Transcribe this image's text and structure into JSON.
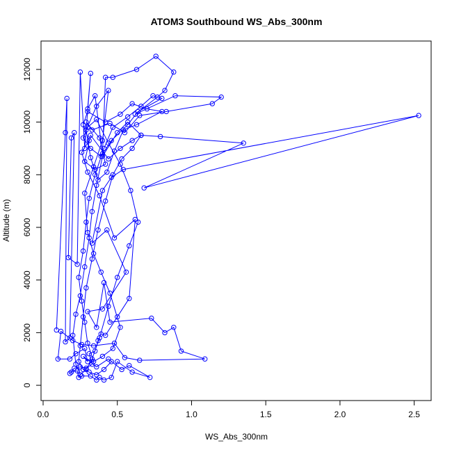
{
  "chart_data": {
    "type": "line",
    "title": "ATOM3 Southbound WS_Abs_300nm",
    "xlabel": "WS_Abs_300nm",
    "ylabel": "Altitude (m)",
    "xlim": [
      0,
      2.6
    ],
    "ylim": [
      -500,
      13000
    ],
    "x_ticks": [
      "0.0",
      "0.5",
      "1.0",
      "1.5",
      "2.0",
      "2.5"
    ],
    "y_ticks": [
      "0",
      "2000",
      "4000",
      "6000",
      "8000",
      "10000",
      "12000"
    ],
    "grid": false,
    "legend": "none",
    "marker": "open-circle",
    "series": [
      {
        "color": "#0000ff",
        "points": [
          [
            0.09,
            2100
          ],
          [
            0.15,
            9600
          ],
          [
            0.16,
            10900
          ],
          [
            0.15,
            1650
          ],
          [
            0.18,
            1800
          ],
          [
            0.21,
            9600
          ],
          [
            0.19,
            9400
          ],
          [
            0.17,
            4850
          ],
          [
            0.23,
            4600
          ],
          [
            0.25,
            11900
          ],
          [
            0.28,
            9000
          ],
          [
            0.32,
            11850
          ],
          [
            0.3,
            10500
          ],
          [
            0.35,
            11000
          ],
          [
            0.4,
            8800
          ],
          [
            0.42,
            11700
          ],
          [
            0.47,
            11700
          ],
          [
            0.63,
            12000
          ],
          [
            0.76,
            12500
          ],
          [
            0.88,
            11900
          ],
          [
            0.82,
            11200
          ],
          [
            0.77,
            10950
          ],
          [
            0.62,
            10300
          ],
          [
            0.89,
            11000
          ],
          [
            1.2,
            10950
          ],
          [
            1.14,
            10700
          ],
          [
            0.83,
            10400
          ],
          [
            0.65,
            10250
          ],
          [
            0.55,
            9600
          ],
          [
            0.45,
            9950
          ],
          [
            0.33,
            9700
          ],
          [
            0.29,
            10000
          ],
          [
            0.38,
            9400
          ],
          [
            0.42,
            8400
          ],
          [
            0.35,
            8200
          ],
          [
            0.28,
            8500
          ],
          [
            0.32,
            9500
          ],
          [
            0.44,
            8600
          ],
          [
            0.52,
            9000
          ],
          [
            0.6,
            9300
          ],
          [
            0.66,
            9500
          ],
          [
            0.79,
            9450
          ],
          [
            1.35,
            9200
          ],
          [
            0.68,
            7500
          ],
          [
            2.53,
            10250
          ],
          [
            0.54,
            8200
          ],
          [
            0.46,
            7900
          ],
          [
            0.4,
            7400
          ],
          [
            0.33,
            5400
          ],
          [
            0.43,
            5900
          ],
          [
            0.56,
            4300
          ],
          [
            0.4,
            2900
          ],
          [
            0.3,
            2800
          ],
          [
            0.36,
            2200
          ],
          [
            0.41,
            3900
          ],
          [
            0.45,
            2400
          ],
          [
            0.73,
            2550
          ],
          [
            0.82,
            2000
          ],
          [
            0.88,
            2200
          ],
          [
            0.93,
            1300
          ],
          [
            1.09,
            1000
          ],
          [
            0.65,
            950
          ],
          [
            0.55,
            1050
          ],
          [
            0.48,
            1600
          ],
          [
            0.34,
            1500
          ],
          [
            0.26,
            1550
          ],
          [
            0.2,
            1700
          ],
          [
            0.12,
            2050
          ],
          [
            0.1,
            1000
          ],
          [
            0.18,
            1000
          ],
          [
            0.22,
            1200
          ],
          [
            0.28,
            1400
          ],
          [
            0.3,
            900
          ],
          [
            0.27,
            1100
          ],
          [
            0.36,
            700
          ],
          [
            0.44,
            1000
          ],
          [
            0.53,
            600
          ],
          [
            0.58,
            750
          ],
          [
            0.72,
            300
          ],
          [
            0.6,
            500
          ],
          [
            0.5,
            900
          ],
          [
            0.46,
            300
          ],
          [
            0.41,
            200
          ],
          [
            0.38,
            300
          ],
          [
            0.36,
            200
          ],
          [
            0.32,
            350
          ],
          [
            0.26,
            350
          ],
          [
            0.24,
            300
          ],
          [
            0.23,
            550
          ],
          [
            0.19,
            500
          ],
          [
            0.18,
            450
          ],
          [
            0.21,
            650
          ],
          [
            0.25,
            700
          ],
          [
            0.29,
            650
          ],
          [
            0.33,
            800
          ],
          [
            0.31,
            1200
          ],
          [
            0.35,
            1300
          ],
          [
            0.37,
            1700
          ],
          [
            0.39,
            1950
          ],
          [
            0.42,
            1900
          ],
          [
            0.5,
            2600
          ],
          [
            0.58,
            3300
          ],
          [
            0.62,
            6300
          ],
          [
            0.48,
            5600
          ],
          [
            0.38,
            7200
          ],
          [
            0.3,
            8100
          ],
          [
            0.26,
            8850
          ],
          [
            0.31,
            9300
          ],
          [
            0.27,
            9900
          ],
          [
            0.3,
            10400
          ],
          [
            0.42,
            10000
          ],
          [
            0.52,
            10300
          ],
          [
            0.6,
            10700
          ],
          [
            0.7,
            10500
          ],
          [
            0.8,
            10400
          ],
          [
            0.63,
            9900
          ],
          [
            0.54,
            9700
          ],
          [
            0.48,
            8900
          ],
          [
            0.43,
            8100
          ],
          [
            0.37,
            7800
          ],
          [
            0.32,
            8650
          ],
          [
            0.29,
            9700
          ],
          [
            0.36,
            10600
          ],
          [
            0.44,
            11200
          ],
          [
            0.4,
            9300
          ],
          [
            0.34,
            8300
          ],
          [
            0.28,
            7300
          ],
          [
            0.3,
            5800
          ],
          [
            0.34,
            5000
          ],
          [
            0.39,
            4300
          ],
          [
            0.45,
            3500
          ],
          [
            0.52,
            2200
          ],
          [
            0.47,
            1400
          ],
          [
            0.4,
            1100
          ],
          [
            0.34,
            900
          ],
          [
            0.3,
            1600
          ],
          [
            0.28,
            2400
          ],
          [
            0.26,
            3200
          ],
          [
            0.24,
            4100
          ],
          [
            0.27,
            5100
          ],
          [
            0.29,
            6200
          ],
          [
            0.31,
            7100
          ],
          [
            0.35,
            8000
          ],
          [
            0.41,
            9000
          ],
          [
            0.47,
            9800
          ],
          [
            0.57,
            10200
          ],
          [
            0.66,
            10600
          ],
          [
            0.74,
            11000
          ],
          [
            0.8,
            10900
          ],
          [
            0.64,
            10400
          ],
          [
            0.57,
            9900
          ],
          [
            0.46,
            9300
          ],
          [
            0.39,
            8700
          ],
          [
            0.32,
            9000
          ],
          [
            0.27,
            9400
          ],
          [
            0.3,
            9800
          ],
          [
            0.36,
            10100
          ],
          [
            0.44,
            9200
          ],
          [
            0.52,
            8400
          ],
          [
            0.59,
            7400
          ],
          [
            0.64,
            6200
          ],
          [
            0.58,
            5300
          ],
          [
            0.5,
            4100
          ],
          [
            0.44,
            3000
          ],
          [
            0.38,
            1800
          ],
          [
            0.33,
            1000
          ],
          [
            0.29,
            600
          ],
          [
            0.25,
            400
          ],
          [
            0.22,
            800
          ],
          [
            0.2,
            1900
          ],
          [
            0.22,
            2700
          ],
          [
            0.25,
            3400
          ],
          [
            0.28,
            4500
          ],
          [
            0.31,
            5600
          ],
          [
            0.33,
            6600
          ],
          [
            0.36,
            7600
          ],
          [
            0.4,
            8700
          ],
          [
            0.5,
            9600
          ],
          [
            0.57,
            10000
          ],
          [
            0.66,
            9500
          ],
          [
            0.6,
            9000
          ],
          [
            0.53,
            8600
          ],
          [
            0.47,
            8000
          ],
          [
            0.42,
            7000
          ],
          [
            0.37,
            5900
          ],
          [
            0.33,
            4800
          ],
          [
            0.29,
            3700
          ],
          [
            0.27,
            2600
          ],
          [
            0.25,
            1500
          ],
          [
            0.24,
            900
          ],
          [
            0.27,
            600
          ],
          [
            0.31,
            500
          ],
          [
            0.36,
            400
          ],
          [
            0.41,
            600
          ],
          [
            0.46,
            900
          ]
        ]
      }
    ]
  }
}
